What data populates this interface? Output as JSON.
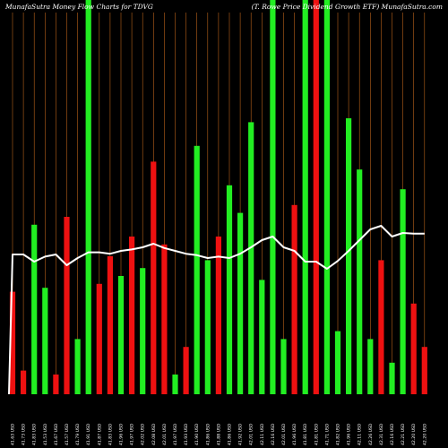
{
  "header": {
    "left_title": "MunafaSutra  Money Flow  Charts for TDVG",
    "right_title": "(T. Rowe   Price   Dividend   Growth ETF) MunafaSutra.com"
  },
  "colors": {
    "background": "#000000",
    "up": "#22ee22",
    "down": "#ee1111",
    "grid": "#b8621a",
    "line": "#ffffff"
  },
  "chart_data": {
    "type": "bar",
    "title": "MunafaSutra  Money Flow  Charts for TDVG",
    "subtitle": "(T. Rowe   Price   Dividend   Growth ETF) MunafaSutra.com",
    "ylim": [
      0,
      100
    ],
    "grid": "vertical",
    "bars": [
      {
        "value": 26,
        "color": "down"
      },
      {
        "value": 6,
        "color": "down"
      },
      {
        "value": 43,
        "color": "up"
      },
      {
        "value": 27,
        "color": "up"
      },
      {
        "value": 5,
        "color": "down"
      },
      {
        "value": 45,
        "color": "down"
      },
      {
        "value": 14,
        "color": "up"
      },
      {
        "value": 100,
        "color": "up"
      },
      {
        "value": 28,
        "color": "down"
      },
      {
        "value": 35,
        "color": "down"
      },
      {
        "value": 30,
        "color": "up"
      },
      {
        "value": 40,
        "color": "down"
      },
      {
        "value": 32,
        "color": "up"
      },
      {
        "value": 59,
        "color": "down"
      },
      {
        "value": 38,
        "color": "down"
      },
      {
        "value": 5,
        "color": "up"
      },
      {
        "value": 12,
        "color": "down"
      },
      {
        "value": 63,
        "color": "up"
      },
      {
        "value": 34,
        "color": "up"
      },
      {
        "value": 40,
        "color": "down"
      },
      {
        "value": 53,
        "color": "up"
      },
      {
        "value": 46,
        "color": "up"
      },
      {
        "value": 69,
        "color": "up"
      },
      {
        "value": 29,
        "color": "up"
      },
      {
        "value": 100,
        "color": "up"
      },
      {
        "value": 14,
        "color": "up"
      },
      {
        "value": 48,
        "color": "down"
      },
      {
        "value": 100,
        "color": "up"
      },
      {
        "value": 100,
        "color": "down"
      },
      {
        "value": 100,
        "color": "up"
      },
      {
        "value": 16,
        "color": "up"
      },
      {
        "value": 70,
        "color": "up"
      },
      {
        "value": 57,
        "color": "up"
      },
      {
        "value": 14,
        "color": "up"
      },
      {
        "value": 34,
        "color": "down"
      },
      {
        "value": 8,
        "color": "up"
      },
      {
        "value": 52,
        "color": "up"
      },
      {
        "value": 23,
        "color": "down"
      },
      {
        "value": 12,
        "color": "down"
      }
    ],
    "line_values": [
      69.5,
      69.5,
      68.5,
      69.2,
      69.5,
      68.0,
      69.0,
      69.8,
      69.8,
      69.6,
      70.0,
      70.2,
      70.5,
      71.0,
      70.4,
      70.0,
      69.6,
      69.4,
      69.0,
      69.2,
      69.0,
      69.6,
      70.5,
      71.5,
      72.0,
      70.5,
      70.0,
      68.5,
      68.5,
      67.5,
      68.6,
      70.0,
      71.5,
      73.0,
      73.5,
      72.0,
      72.5,
      72.4,
      72.4
    ],
    "tick_labels": [
      "41.63 USD",
      "41.73 USD",
      "41.83 USD",
      "41.53 USD",
      "41.67 USD",
      "41.57 USD",
      "41.79 USD",
      "41.91 USD",
      "41.87 USD",
      "41.83 USD",
      "41.96 USD",
      "41.97 USD",
      "42.02 USD",
      "42.08 USD",
      "42.01 USD",
      "41.97 USD",
      "41.93 USD",
      "41.90 USD",
      "41.86 USD",
      "41.88 USD",
      "41.86 USD",
      "41.92 USD",
      "42.01 USD",
      "42.11 USD",
      "42.16 USD",
      "42.01 USD",
      "41.96 USD",
      "41.81 USD",
      "41.81 USD",
      "41.71 USD",
      "41.82 USD",
      "41.96 USD",
      "42.11 USD",
      "42.26 USD",
      "42.31 USD",
      "42.16 USD",
      "42.21 USD",
      "42.20 USD",
      "42.20 USD"
    ]
  }
}
